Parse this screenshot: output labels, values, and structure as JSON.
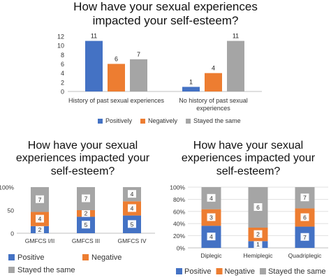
{
  "colors": {
    "Positively": "#4472C4",
    "Negatively": "#ED7D31",
    "Stayed the same": "#A5A5A5",
    "Positive": "#4472C4",
    "Negative": "#ED7D31",
    "axis": "#BFBFBF",
    "grid": "#D9D9D9"
  },
  "chart_data": [
    {
      "type": "bar",
      "title": "How have your sexual experiences impacted your self-esteem?",
      "title_lines": [
        "How have your sexual experiences",
        "impacted your self-esteem?"
      ],
      "categories": [
        "History of past sexual experiences",
        "No history of past sexual experiences"
      ],
      "category_lines": [
        [
          "History of past sexual experiences"
        ],
        [
          "No history of past sexual",
          "experiences"
        ]
      ],
      "series": [
        {
          "name": "Positively",
          "values": [
            11,
            1
          ]
        },
        {
          "name": "Negatively",
          "values": [
            6,
            4
          ]
        },
        {
          "name": "Stayed the same",
          "values": [
            7,
            11
          ]
        }
      ],
      "ylim": [
        0,
        12
      ],
      "yticks": [
        "0",
        "2",
        "4",
        "6",
        "8",
        "10",
        "12"
      ],
      "ytick_values": [
        0,
        2,
        4,
        6,
        8,
        10,
        12
      ],
      "grid": false,
      "legend": "bottom"
    },
    {
      "type": "bar",
      "stacked": true,
      "percent": true,
      "title": "How have your sexual experiences impacted your self-esteem?",
      "title_lines": [
        "How have your sexual",
        "experiences impacted your",
        "self-esteem?"
      ],
      "categories": [
        "GMFCS I/II",
        "GMFCS III",
        "GMFCS IV"
      ],
      "series": [
        {
          "name": "Positive",
          "values": [
            2,
            5,
            5
          ]
        },
        {
          "name": "Negative",
          "values": [
            4,
            2,
            4
          ]
        },
        {
          "name": "Stayed the same",
          "values": [
            7,
            7,
            4
          ]
        }
      ],
      "ylim": [
        0,
        100
      ],
      "yticks": [
        "0",
        "50",
        "100%"
      ],
      "ytick_values": [
        0,
        50,
        100
      ],
      "grid": false,
      "legend": "bottom"
    },
    {
      "type": "bar",
      "stacked": true,
      "percent": true,
      "title": "How have your sexual experiences impacted your self-esteem?",
      "title_lines": [
        "How have your sexual",
        "experiences impacted your",
        "self-esteem?"
      ],
      "categories": [
        "Diplegic",
        "Hemiplegic",
        "Quadriplegic"
      ],
      "series": [
        {
          "name": "Positive",
          "values": [
            4,
            1,
            7
          ]
        },
        {
          "name": "Negative",
          "values": [
            3,
            2,
            6
          ]
        },
        {
          "name": "Stayed the same",
          "values": [
            4,
            6,
            7
          ]
        }
      ],
      "ylim": [
        0,
        100
      ],
      "yticks": [
        "0%",
        "20%",
        "40%",
        "60%",
        "80%",
        "100%"
      ],
      "ytick_values": [
        0,
        20,
        40,
        60,
        80,
        100
      ],
      "grid": true,
      "legend": "bottom"
    }
  ]
}
